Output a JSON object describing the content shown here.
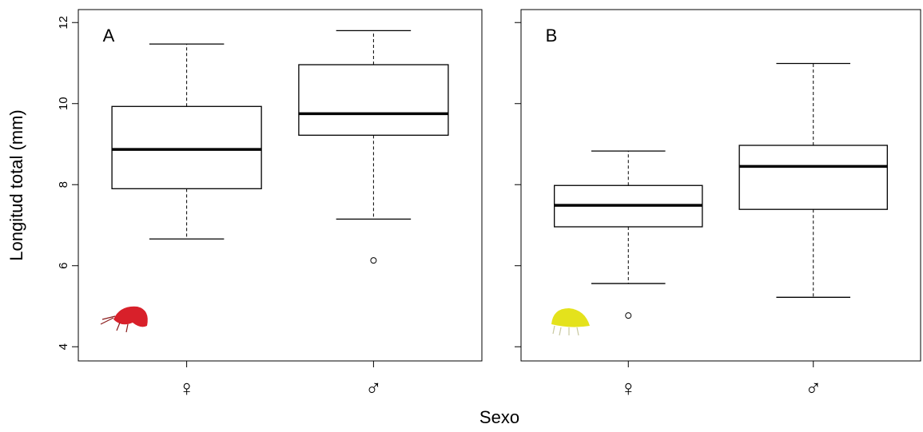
{
  "chart_data": [
    {
      "type": "boxplot",
      "panel_label": "A",
      "ylabel": "Longitud total (mm)",
      "xlabel": "Sexo",
      "categories": [
        "♀",
        "♂"
      ],
      "boxes": [
        {
          "min": 6.66,
          "q1": 7.9,
          "median": 8.87,
          "q3": 9.93,
          "max": 11.47,
          "outliers": []
        },
        {
          "min": 7.15,
          "q1": 9.22,
          "median": 9.75,
          "q3": 10.96,
          "max": 11.8,
          "outliers": [
            6.13
          ]
        }
      ],
      "ylim": [
        3.65,
        12.32
      ],
      "yticks": [
        4,
        6,
        8,
        10,
        12
      ]
    },
    {
      "type": "boxplot",
      "panel_label": "B",
      "categories": [
        "♀",
        "♂"
      ],
      "boxes": [
        {
          "min": 5.56,
          "q1": 6.96,
          "median": 7.49,
          "q3": 7.98,
          "max": 8.83,
          "outliers": [
            4.77
          ]
        },
        {
          "min": 5.22,
          "q1": 7.39,
          "median": 8.45,
          "q3": 8.97,
          "max": 10.99,
          "outliers": []
        }
      ],
      "ylim": [
        3.65,
        12.32
      ],
      "yticks": [
        4,
        6,
        8,
        10,
        12
      ]
    }
  ]
}
